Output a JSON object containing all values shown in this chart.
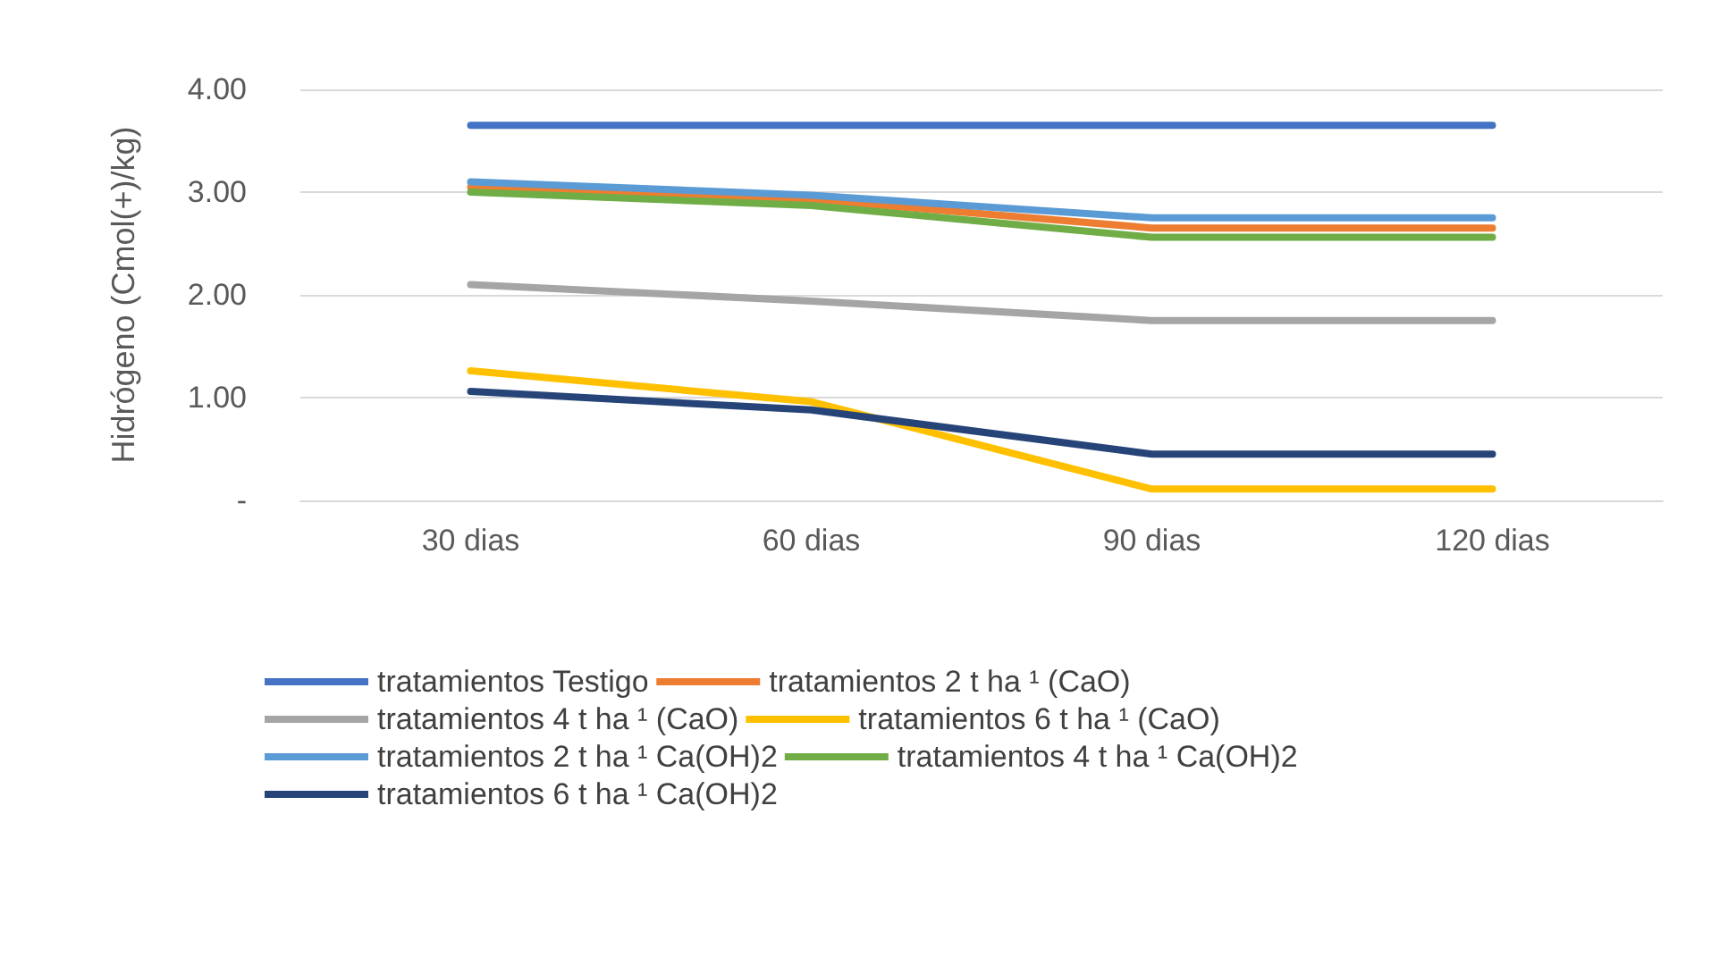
{
  "chart_data": {
    "type": "line",
    "ylabel": "Hidrógeno (Cmol(+)/kg)",
    "categories": [
      "30 dias",
      "60 dias",
      "90 dias",
      "120 dias"
    ],
    "series": [
      {
        "name": "tratamientos Testigo",
        "color": "#4472c4",
        "values": [
          3.65,
          3.65,
          3.65,
          3.65
        ]
      },
      {
        "name": "tratamientos 2 t ha ¹ (CaO)",
        "color": "#ed7d31",
        "values": [
          3.05,
          2.93,
          2.65,
          2.65
        ]
      },
      {
        "name": "tratamientos 4 t ha ¹ (CaO)",
        "color": "#a5a5a5",
        "values": [
          2.1,
          1.94,
          1.75,
          1.75
        ]
      },
      {
        "name": "tratamientos 6 t ha ¹ (CaO)",
        "color": "#ffc000",
        "values": [
          1.26,
          0.96,
          0.11,
          0.11
        ]
      },
      {
        "name": "tratamientos 2 t ha ¹ Ca(OH)2",
        "color": "#5b9bd5",
        "values": [
          3.1,
          2.97,
          2.75,
          2.75
        ]
      },
      {
        "name": "tratamientos 4 t ha ¹ Ca(OH)2",
        "color": "#70ad47",
        "values": [
          3.0,
          2.87,
          2.56,
          2.56
        ]
      },
      {
        "name": "tratamientos 6 t ha ¹ Ca(OH)2",
        "color": "#264478",
        "values": [
          1.06,
          0.88,
          0.45,
          0.45
        ]
      }
    ],
    "ylim": [
      0,
      4
    ],
    "yticks": [
      {
        "value": 0,
        "label": "-"
      },
      {
        "value": 1,
        "label": "1.00"
      },
      {
        "value": 2,
        "label": "2.00"
      },
      {
        "value": 3,
        "label": "3.00"
      },
      {
        "value": 4,
        "label": "4.00"
      }
    ],
    "grid": "y",
    "legend": "bottom",
    "marker": "none",
    "line_style": "solid"
  }
}
